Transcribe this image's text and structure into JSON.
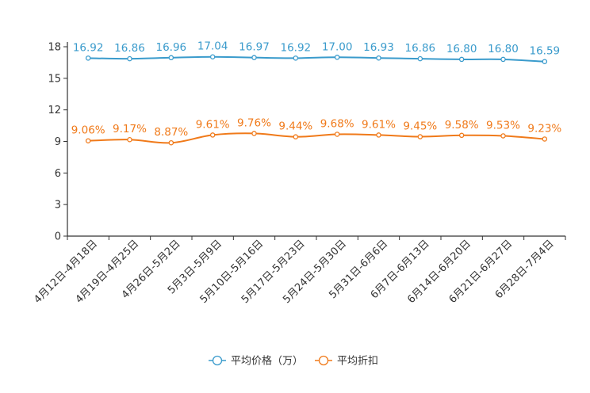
{
  "chart_data": {
    "type": "line",
    "title": "",
    "xlabel": "",
    "ylabel": "",
    "ylim": [
      0,
      18
    ],
    "yticks": [
      0,
      3,
      6,
      9,
      12,
      15,
      18
    ],
    "categories": [
      "4月12日-4月18日",
      "4月19日-4月25日",
      "4月26日-5月2日",
      "5月3日-5月9日",
      "5月10日-5月16日",
      "5月17日-5月23日",
      "5月24日-5月30日",
      "5月31日-6月6日",
      "6月7日-6月13日",
      "6月14日-6月20日",
      "6月21日-6月27日",
      "6月28日-7月4日"
    ],
    "series": [
      {
        "name": "平均价格（万）",
        "color": "#3a9bcc",
        "values": [
          16.92,
          16.86,
          16.96,
          17.04,
          16.97,
          16.92,
          17.0,
          16.93,
          16.86,
          16.8,
          16.8,
          16.59
        ],
        "labels": [
          "16.92",
          "16.86",
          "16.96",
          "17.04",
          "16.97",
          "16.92",
          "17.00",
          "16.93",
          "16.86",
          "16.80",
          "16.80",
          "16.59"
        ]
      },
      {
        "name": "平均折扣",
        "color": "#f07a1a",
        "values": [
          9.06,
          9.17,
          8.87,
          9.61,
          9.76,
          9.44,
          9.68,
          9.61,
          9.45,
          9.58,
          9.53,
          9.23
        ],
        "labels": [
          "9.06%",
          "9.17%",
          "8.87%",
          "9.61%",
          "9.76%",
          "9.44%",
          "9.68%",
          "9.61%",
          "9.45%",
          "9.58%",
          "9.53%",
          "9.23%"
        ]
      }
    ],
    "legend_position": "bottom-center"
  }
}
